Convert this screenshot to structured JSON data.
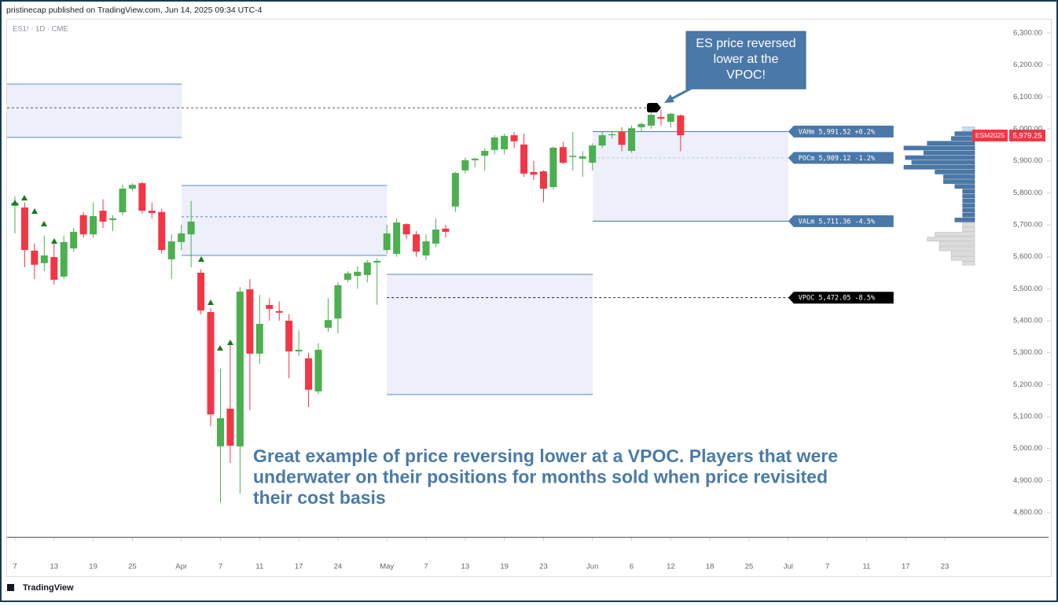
{
  "header": "pristinecap published on TradingView.com, Jun 14, 2025 09:34 UTC-4",
  "footer": "TradingView",
  "chart_data": {
    "type": "candlestick",
    "symbol_label": "ES1! · 1D · CME",
    "up_color": "#4caf50",
    "down_color": "#f23645",
    "xlim": [
      -0.8,
      101.5
    ],
    "ylim": [
      4724,
      6344
    ],
    "xticks": [
      {
        "value": 0,
        "label": "7"
      },
      {
        "value": 4,
        "label": "13"
      },
      {
        "value": 8,
        "label": "19"
      },
      {
        "value": 12,
        "label": "25"
      },
      {
        "value": 17,
        "label": "Apr"
      },
      {
        "value": 21,
        "label": "7"
      },
      {
        "value": 25,
        "label": "11"
      },
      {
        "value": 29,
        "label": "17"
      },
      {
        "value": 33,
        "label": "24"
      },
      {
        "value": 38,
        "label": "May"
      },
      {
        "value": 42,
        "label": "7"
      },
      {
        "value": 46,
        "label": "13"
      },
      {
        "value": 50,
        "label": "19"
      },
      {
        "value": 54,
        "label": "23"
      },
      {
        "value": 59,
        "label": "Jun"
      },
      {
        "value": 63,
        "label": "6"
      },
      {
        "value": 67,
        "label": "12"
      },
      {
        "value": 71,
        "label": "18"
      },
      {
        "value": 75,
        "label": "25"
      },
      {
        "value": 79,
        "label": "Jul"
      },
      {
        "value": 83,
        "label": "7"
      },
      {
        "value": 87,
        "label": "11"
      },
      {
        "value": 91,
        "label": "17"
      },
      {
        "value": 95,
        "label": "23"
      }
    ],
    "yticks": [
      {
        "value": 6300,
        "label": "6,300.00"
      },
      {
        "value": 6200,
        "label": "6,200.00"
      },
      {
        "value": 6100,
        "label": "6,100.00"
      },
      {
        "value": 6000,
        "label": "6,000.00"
      },
      {
        "value": 5900,
        "label": "5,900.00"
      },
      {
        "value": 5800,
        "label": "5,800.00"
      },
      {
        "value": 5700,
        "label": "5,700.00"
      },
      {
        "value": 5600,
        "label": "5,600.00"
      },
      {
        "value": 5500,
        "label": "5,500.00"
      },
      {
        "value": 5400,
        "label": "5,400.00"
      },
      {
        "value": 5300,
        "label": "5,300.00"
      },
      {
        "value": 5200,
        "label": "5,200.00"
      },
      {
        "value": 5100,
        "label": "5,100.00"
      },
      {
        "value": 5000,
        "label": "5,000.00"
      },
      {
        "value": 4900,
        "label": "4,900.00"
      },
      {
        "value": 4800,
        "label": "4,800.00"
      }
    ],
    "open": [
      5759,
      5754,
      5619,
      5580,
      5599,
      5538,
      5626,
      5730,
      5670,
      5744,
      5715,
      5739,
      5813,
      5830,
      5744,
      5740,
      5592,
      5646,
      5670,
      5550,
      5427,
      5007,
      5125,
      5007,
      5498,
      5297,
      5449,
      5430,
      5400,
      5304,
      5282,
      5179,
      5378,
      5407,
      5528,
      5540,
      5543,
      5582,
      5621,
      5609,
      5702,
      5670,
      5604,
      5641,
      5688,
      5757,
      5870,
      5902,
      5916,
      5934,
      5936,
      5980,
      5951,
      5865,
      5867,
      5818,
      5943,
      5912,
      5907,
      5894,
      5948,
      5980,
      5990,
      5931,
      6005,
      6010,
      6037,
      6022,
      6042
    ],
    "high": [
      5789,
      5769,
      5641,
      5666,
      5641,
      5666,
      5690,
      5740,
      5770,
      5780,
      5730,
      5825,
      5830,
      5835,
      5770,
      5750,
      5670,
      5700,
      5775,
      5560,
      5440,
      5250,
      5340,
      5505,
      5530,
      5480,
      5470,
      5460,
      5420,
      5370,
      5300,
      5330,
      5470,
      5520,
      5555,
      5570,
      5590,
      5595,
      5700,
      5720,
      5705,
      5680,
      5670,
      5720,
      5700,
      5865,
      5910,
      5910,
      5940,
      5980,
      5985,
      5990,
      5985,
      5900,
      5870,
      5945,
      5960,
      5990,
      5930,
      5955,
      5990,
      5990,
      6005,
      6010,
      6020,
      6050,
      6060,
      6050,
      6045
    ],
    "low": [
      5673,
      5567,
      5530,
      5555,
      5513,
      5530,
      5615,
      5660,
      5660,
      5690,
      5680,
      5730,
      5805,
      5735,
      5720,
      5610,
      5530,
      5620,
      5567,
      5420,
      5070,
      4830,
      4955,
      4860,
      5120,
      5265,
      5400,
      5400,
      5220,
      5290,
      5130,
      5170,
      5365,
      5360,
      5520,
      5500,
      5520,
      5450,
      5610,
      5600,
      5655,
      5600,
      5590,
      5630,
      5660,
      5740,
      5860,
      5880,
      5870,
      5920,
      5920,
      5940,
      5850,
      5840,
      5770,
      5810,
      5890,
      5870,
      5850,
      5870,
      5940,
      5970,
      5930,
      5925,
      5990,
      6000,
      6010,
      6005,
      5930
    ],
    "close": [
      5769,
      5621,
      5575,
      5604,
      5528,
      5646,
      5678,
      5670,
      5727,
      5710,
      5720,
      5813,
      5825,
      5744,
      5737,
      5621,
      5648,
      5673,
      5710,
      5432,
      5107,
      5095,
      5009,
      5491,
      5297,
      5390,
      5437,
      5425,
      5304,
      5309,
      5184,
      5309,
      5402,
      5511,
      5548,
      5553,
      5582,
      5587,
      5673,
      5707,
      5670,
      5616,
      5648,
      5685,
      5678,
      5862,
      5902,
      5907,
      5931,
      5973,
      5978,
      5961,
      5860,
      5857,
      5813,
      5941,
      5894,
      5916,
      5914,
      5948,
      5980,
      5983,
      5950,
      6002,
      6015,
      6044,
      6032,
      6047,
      5980
    ],
    "zones": [
      {
        "from": -0.8,
        "to": 17.03,
        "low": 5973,
        "high": 6140
      },
      {
        "from": 17.03,
        "to": 38.0,
        "low": 5604,
        "high": 5823
      },
      {
        "from": 38.0,
        "to": 59.04,
        "low": 5169,
        "high": 5545
      },
      {
        "from": 59.04,
        "to": 79.0,
        "low": 5711.36,
        "high": 5991.52
      }
    ],
    "naked_pocs": [
      {
        "value": 6066,
        "from": -0.8,
        "to": 65.1,
        "color": "#222222"
      },
      {
        "value": 5725,
        "from": 17.03,
        "to": 38.0,
        "color": "#4a78a8"
      }
    ],
    "levels": [
      {
        "value": 5991.52,
        "label": "VAHm 5,991.52 +0.2%",
        "from": 59.04,
        "to": 79.0,
        "color": "#4a78a8",
        "dashed": false
      },
      {
        "value": 5909.12,
        "label": "POCm 5,909.12 -1.2%",
        "from": 59.04,
        "to": 79.0,
        "color": "#4a78a8",
        "dashed": true
      },
      {
        "value": 5711.36,
        "label": "VALm 5,711.36 -4.5%",
        "from": 59.04,
        "to": 79.0,
        "color": "#4a78a8",
        "dashed": false
      },
      {
        "value": 5472.05,
        "label": "VPOC 5,472.05 -8.5%",
        "from": 38.0,
        "to": 79.0,
        "color": "#000000",
        "dashed": true
      }
    ],
    "last_price": {
      "value": 5979.25,
      "label": "5,979.25",
      "symbol": "ESM2025",
      "color": "#f23645"
    },
    "volume_profile": {
      "prices": [
        6000,
        5985,
        5970,
        5955,
        5940,
        5925,
        5910,
        5895,
        5880,
        5865,
        5850,
        5835,
        5820,
        5805,
        5790,
        5775,
        5760,
        5745,
        5730,
        5715,
        5700,
        5685,
        5670,
        5655,
        5640,
        5625,
        5610,
        5595,
        5580
      ],
      "volumes": [
        17,
        28,
        33,
        67,
        100,
        72,
        98,
        89,
        100,
        56,
        44,
        44,
        28,
        17,
        17,
        17,
        17,
        17,
        17,
        28,
        17,
        17,
        56,
        67,
        50,
        50,
        33,
        33,
        17
      ]
    },
    "callout": [
      "ES price reversed",
      "lower at the",
      "VPOC!"
    ],
    "note": [
      "Great example of price reversing lower at a VPOC. Players that were",
      "underwater on their positions for months sold when price revisited",
      "their cost basis"
    ]
  }
}
